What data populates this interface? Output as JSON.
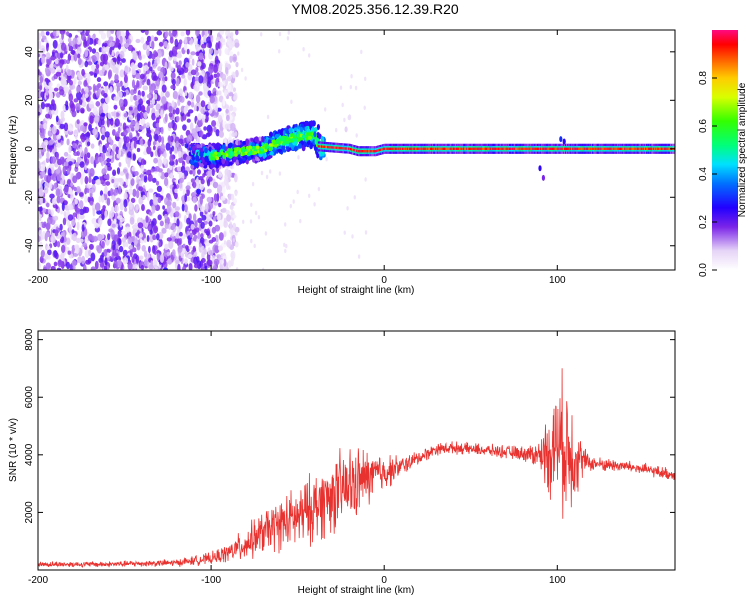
{
  "title": "YM08.2025.356.12.39.R20",
  "chart_data": [
    {
      "type": "heatmap",
      "title": "",
      "xlabel": "Height of straight line (km)",
      "ylabel": "Frequency (Hz)",
      "xlim": [
        -200,
        168
      ],
      "ylim": [
        -50,
        49
      ],
      "x_ticks": [
        -200,
        -100,
        0,
        100
      ],
      "x_tick_labels": [
        "-200",
        "-100",
        "0",
        "100"
      ],
      "y_ticks": [
        -40,
        -20,
        0,
        20,
        40
      ],
      "y_tick_labels": [
        "-40",
        "-20",
        "0",
        "20",
        "40"
      ],
      "colorbar": {
        "label": "Normalized spectral amplitude",
        "range": [
          0,
          1
        ],
        "ticks": [
          0.0,
          0.2,
          0.4,
          0.6,
          0.8
        ],
        "tick_labels": [
          "0.0",
          "0.2",
          "0.4",
          "0.6",
          "0.8"
        ]
      },
      "ridge": {
        "description_points": [
          {
            "x": -100,
            "y": -3
          },
          {
            "x": -90,
            "y": -2
          },
          {
            "x": -80,
            "y": -1
          },
          {
            "x": -70,
            "y": 0
          },
          {
            "x": -60,
            "y": 3
          },
          {
            "x": -50,
            "y": 5
          },
          {
            "x": -40,
            "y": 6
          },
          {
            "x": -38,
            "y": 1
          },
          {
            "x": -20,
            "y": 0
          },
          {
            "x": -15,
            "y": -1
          },
          {
            "x": -5,
            "y": -1
          },
          {
            "x": 0,
            "y": 0
          },
          {
            "x": 168,
            "y": 0
          }
        ]
      }
    },
    {
      "type": "line",
      "title": "",
      "xlabel": "Height of straight line (km)",
      "ylabel": "SNR (10 * v/v)",
      "xlim": [
        -200,
        168
      ],
      "ylim": [
        0,
        8300
      ],
      "x_ticks": [
        -200,
        -100,
        0,
        100
      ],
      "x_tick_labels": [
        "-200",
        "-100",
        "0",
        "100"
      ],
      "y_ticks": [
        2000,
        4000,
        6000,
        8000
      ],
      "y_tick_labels": [
        "2000",
        "4000",
        "6000",
        "8000"
      ],
      "color": "#e8322f",
      "series": [
        {
          "name": "SNR",
          "envelope": {
            "x": [
              -200,
              -160,
              -120,
              -100,
              -90,
              -80,
              -70,
              -60,
              -50,
              -40,
              -30,
              -20,
              -10,
              0,
              10,
              20,
              30,
              40,
              60,
              80,
              90,
              95,
              100,
              105,
              110,
              115,
              120,
              140,
              168
            ],
            "mean": [
              200,
              200,
              250,
              400,
              600,
              900,
              1300,
              1600,
              1800,
              2200,
              2600,
              2900,
              3200,
              3400,
              3600,
              3900,
              4200,
              4250,
              4150,
              4050,
              4000,
              4100,
              4500,
              4300,
              4000,
              3800,
              3700,
              3600,
              3300
            ],
            "amp": [
              120,
              120,
              150,
              250,
              400,
              700,
              900,
              1100,
              1300,
              1500,
              1600,
              1700,
              1200,
              800,
              400,
              300,
              250,
              250,
              250,
              300,
              600,
              1800,
              2500,
              3000,
              2000,
              600,
              300,
              250,
              250
            ]
          }
        }
      ]
    }
  ]
}
